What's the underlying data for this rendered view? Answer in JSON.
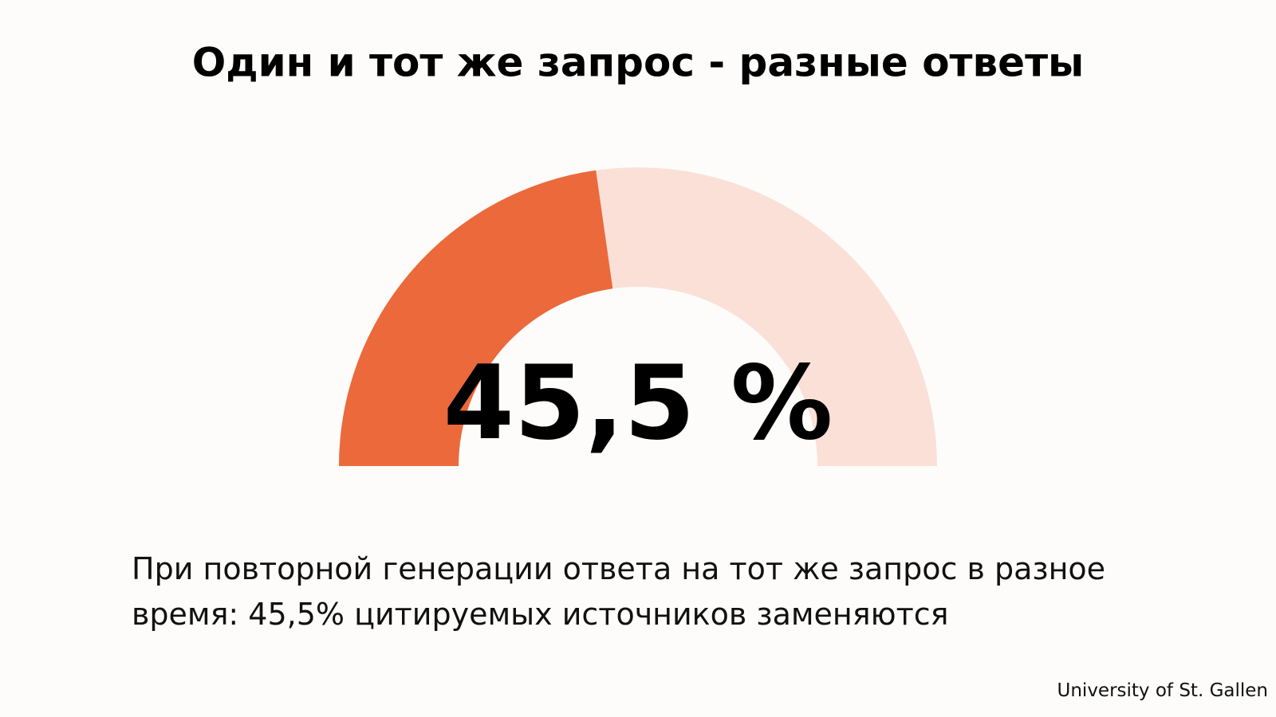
{
  "chart_data": {
    "type": "gauge",
    "title": "Один и тот же запрос - разные ответы",
    "values": [
      45.5
    ],
    "value_labels": [
      "45,5 %"
    ],
    "ylim": [
      0,
      100
    ],
    "color": "#eb693b",
    "track_color": "#fae0d7",
    "caption": "При повторной генерации ответа на тот же запрос в разное время: 45,5% цитируемых источников заменяются",
    "source": "University of St. Gallen"
  }
}
